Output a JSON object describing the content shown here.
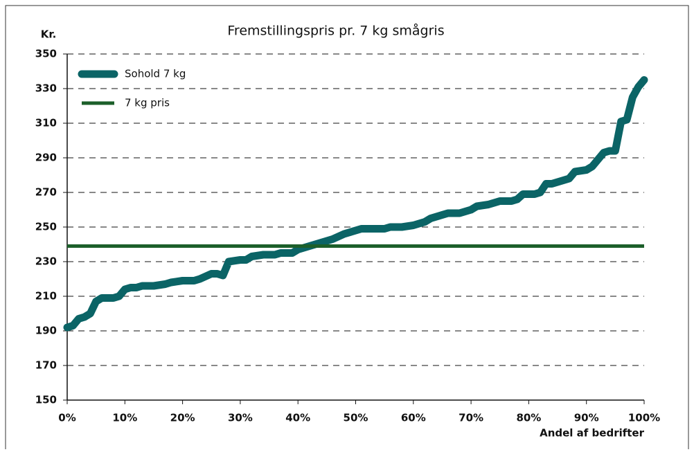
{
  "chart_data": {
    "type": "line",
    "title": "Fremstillingspris pr. 7 kg smågris",
    "ylabel": "Kr.",
    "xlabel": "Andel af bedrifter",
    "xlim": [
      0,
      100
    ],
    "ylim": [
      150,
      350
    ],
    "xticks": [
      {
        "value": 0,
        "label": "0%"
      },
      {
        "value": 10,
        "label": "10%"
      },
      {
        "value": 20,
        "label": "20%"
      },
      {
        "value": 30,
        "label": "30%"
      },
      {
        "value": 40,
        "label": "40%"
      },
      {
        "value": 50,
        "label": "50%"
      },
      {
        "value": 60,
        "label": "60%"
      },
      {
        "value": 70,
        "label": "70%"
      },
      {
        "value": 80,
        "label": "80%"
      },
      {
        "value": 90,
        "label": "90%"
      },
      {
        "value": 100,
        "label": "100%"
      }
    ],
    "yticks": [
      150,
      170,
      190,
      210,
      230,
      250,
      270,
      290,
      310,
      330,
      350
    ],
    "grid": true,
    "legend": "upper left",
    "series": [
      {
        "name": "Sohold 7 kg",
        "color": "#0b6466",
        "x": [
          0,
          1,
          2,
          3,
          4,
          5,
          6,
          7,
          8,
          9,
          10,
          11,
          12,
          13,
          15,
          17,
          18,
          20,
          22,
          23,
          25,
          26,
          27,
          28,
          30,
          31,
          32,
          34,
          36,
          37,
          39,
          40,
          42,
          44,
          46,
          48,
          50,
          51,
          53,
          55,
          56,
          58,
          60,
          62,
          63,
          64,
          66,
          68,
          70,
          71,
          73,
          75,
          77,
          78,
          79,
          81,
          82,
          83,
          84,
          85,
          86,
          87,
          88,
          90,
          91,
          92,
          93,
          94,
          95,
          96,
          97,
          98,
          99,
          100
        ],
        "values": [
          192,
          193,
          197,
          198,
          200,
          207,
          209,
          209,
          209,
          210,
          214,
          215,
          215,
          216,
          216,
          217,
          218,
          219,
          219,
          220,
          223,
          223,
          222,
          230,
          231,
          231,
          233,
          234,
          234,
          235,
          235,
          237,
          239,
          241,
          243,
          246,
          248,
          249,
          249,
          249,
          250,
          250,
          251,
          253,
          255,
          256,
          258,
          258,
          260,
          262,
          263,
          265,
          265,
          266,
          269,
          269,
          270,
          275,
          275,
          276,
          277,
          278,
          282,
          283,
          285,
          289,
          293,
          294,
          294,
          311,
          312,
          325,
          331,
          335
        ]
      },
      {
        "name": "7 kg pris",
        "color": "#1c5f2a",
        "x": [
          0,
          100
        ],
        "values": [
          239,
          239
        ]
      }
    ]
  }
}
